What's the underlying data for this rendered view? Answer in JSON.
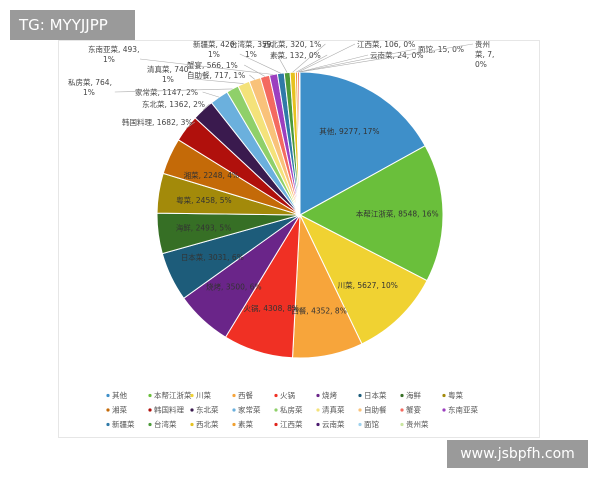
{
  "header": {
    "tag": "TG: MYYJJPP"
  },
  "watermark": "www.jsbpfh.com",
  "chart_data": {
    "type": "pie",
    "legend_position": "bottom",
    "slices": [
      {
        "name": "其他",
        "value": 9277,
        "pct": "17%",
        "color": "#3e8fc9",
        "label": "其他, 9277, 17%"
      },
      {
        "name": "本帮江浙菜",
        "value": 8548,
        "pct": "16%",
        "color": "#6abf3b",
        "label": "本帮江浙菜, 8548, 16%"
      },
      {
        "name": "川菜",
        "value": 5627,
        "pct": "10%",
        "color": "#f0d232",
        "label": "川菜, 5627, 10%"
      },
      {
        "name": "西餐",
        "value": 4352,
        "pct": "8%",
        "color": "#f7a53b",
        "label": "西餐, 4352, 8%"
      },
      {
        "name": "火锅",
        "value": 4308,
        "pct": "8%",
        "color": "#f03024",
        "label": "火锅, 4308, 8%"
      },
      {
        "name": "烧烤",
        "value": 3500,
        "pct": "6%",
        "color": "#6a2589",
        "label": "烧烤, 3500, 6%"
      },
      {
        "name": "日本菜",
        "value": 3031,
        "pct": "6%",
        "color": "#1d5c7a",
        "label": "日本菜, 3031, 6%"
      },
      {
        "name": "海鲜",
        "value": 2493,
        "pct": "5%",
        "color": "#366f25",
        "label": "海鲜, 2493, 5%"
      },
      {
        "name": "粤菜",
        "value": 2458,
        "pct": "5%",
        "color": "#a38a0a",
        "label": "粤菜, 2458, 5%"
      },
      {
        "name": "湘菜",
        "value": 2248,
        "pct": "4%",
        "color": "#c46a08",
        "label": "湘菜, 2248, 4%"
      },
      {
        "name": "韩国料理",
        "value": 1682,
        "pct": "3%",
        "color": "#b0100c",
        "label": "韩国料理, 1682, 3%"
      },
      {
        "name": "东北菜",
        "value": 1362,
        "pct": "2%",
        "color": "#3a1a4e",
        "label": "东北菜, 1362, 2%"
      },
      {
        "name": "家常菜",
        "value": 1147,
        "pct": "2%",
        "color": "#6bb0dd",
        "label": "家常菜, 1147, 2%"
      },
      {
        "name": "私房菜",
        "value": 764,
        "pct": "1%",
        "color": "#8fd06a",
        "label": "私房菜, 764, 1%"
      },
      {
        "name": "清真菜",
        "value": 740,
        "pct": "1%",
        "color": "#f4e27a",
        "label": "清真菜, 740, 1%"
      },
      {
        "name": "自助餐",
        "value": 717,
        "pct": "1%",
        "color": "#f9c27a",
        "label": "自助餐, 717, 1%"
      },
      {
        "name": "蟹宴",
        "value": 566,
        "pct": "1%",
        "color": "#f46a60",
        "label": "蟹宴, 566, 1%"
      },
      {
        "name": "东南亚菜",
        "value": 493,
        "pct": "1%",
        "color": "#9c3fbf",
        "label": "东南亚菜, 493, 1%"
      },
      {
        "name": "新疆菜",
        "value": 420,
        "pct": "1%",
        "color": "#2f7aa8",
        "label": "新疆菜, 420, 1%"
      },
      {
        "name": "台湾菜",
        "value": 359,
        "pct": "1%",
        "color": "#4c9a3a",
        "label": "台湾菜, 359, 1%"
      },
      {
        "name": "西北菜",
        "value": 320,
        "pct": "1%",
        "color": "#e6c21f",
        "label": "西北菜, 320, 1%"
      },
      {
        "name": "素菜",
        "value": 132,
        "pct": "0%",
        "color": "#f0a030",
        "label": "素菜, 132, 0%"
      },
      {
        "name": "江西菜",
        "value": 106,
        "pct": "0%",
        "color": "#e0241c",
        "label": "江西菜, 106, 0%"
      },
      {
        "name": "云南菜",
        "value": 24,
        "pct": "0%",
        "color": "#4a1a6e",
        "label": "云南菜, 24, 0%"
      },
      {
        "name": "面馆",
        "value": 15,
        "pct": "0%",
        "color": "#9fd2ee",
        "label": "面馆, 15, 0%"
      },
      {
        "name": "贵州菜",
        "value": 7,
        "pct": "0%",
        "color": "#c9e6a0",
        "label": "贵州菜, 7, 0%"
      }
    ]
  }
}
